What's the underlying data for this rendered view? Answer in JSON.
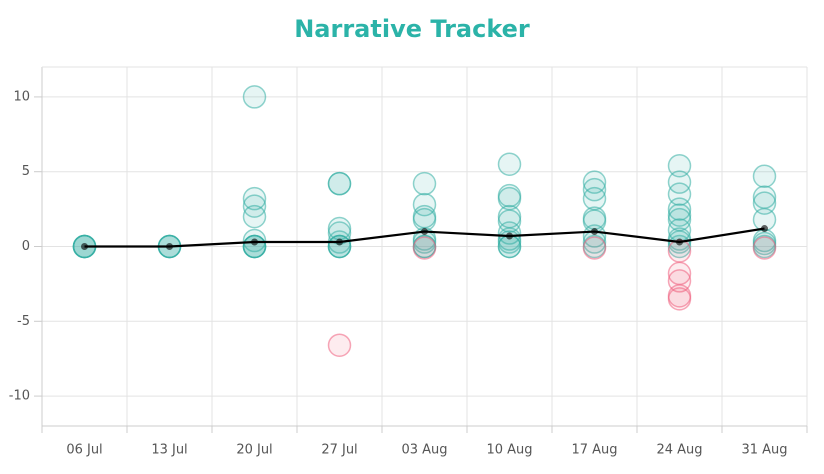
{
  "chart_data": {
    "type": "line",
    "title": "Narrative Tracker",
    "categories": [
      "06 Jul",
      "13 Jul",
      "20 Jul",
      "27 Jul",
      "03 Aug",
      "10 Aug",
      "17 Aug",
      "24 Aug",
      "31 Aug"
    ],
    "values": [
      0,
      0,
      0.3,
      0.3,
      1.0,
      0.7,
      1.0,
      0.3,
      1.2
    ],
    "line_color": "#000000",
    "points": [
      [
        0,
        0,
        0,
        0,
        0
      ],
      [
        0,
        0,
        0,
        0
      ],
      [
        10,
        3.2,
        2.7,
        2.0,
        0.4,
        0,
        0,
        0,
        0
      ],
      [
        4.2,
        4.2,
        1.2,
        0.9,
        0.3,
        0,
        0,
        0,
        -6.6
      ],
      [
        4.2,
        2.8,
        2.0,
        1.8,
        0.5,
        0.3,
        0,
        0,
        -0.1
      ],
      [
        5.5,
        3.4,
        3.2,
        2.0,
        1.7,
        0.9,
        0.5,
        0.3,
        0,
        0
      ],
      [
        4.3,
        3.8,
        3.2,
        1.9,
        1.7,
        0.7,
        0.3,
        0,
        -0.1
      ],
      [
        5.4,
        4.3,
        3.5,
        2.5,
        2.1,
        1.8,
        1.1,
        0.5,
        0.3,
        0,
        -0.3,
        -1.8,
        -2.3,
        -3.3,
        -3.5
      ],
      [
        4.7,
        3.3,
        2.9,
        1.8,
        0.4,
        0.2,
        0,
        -0.1
      ]
    ],
    "positive_color": "#34aea4",
    "negative_color": "#ee5f7e",
    "ylim": [
      -12,
      12
    ],
    "yticks": [
      -10,
      -5,
      0,
      5,
      10
    ],
    "grid": true
  }
}
